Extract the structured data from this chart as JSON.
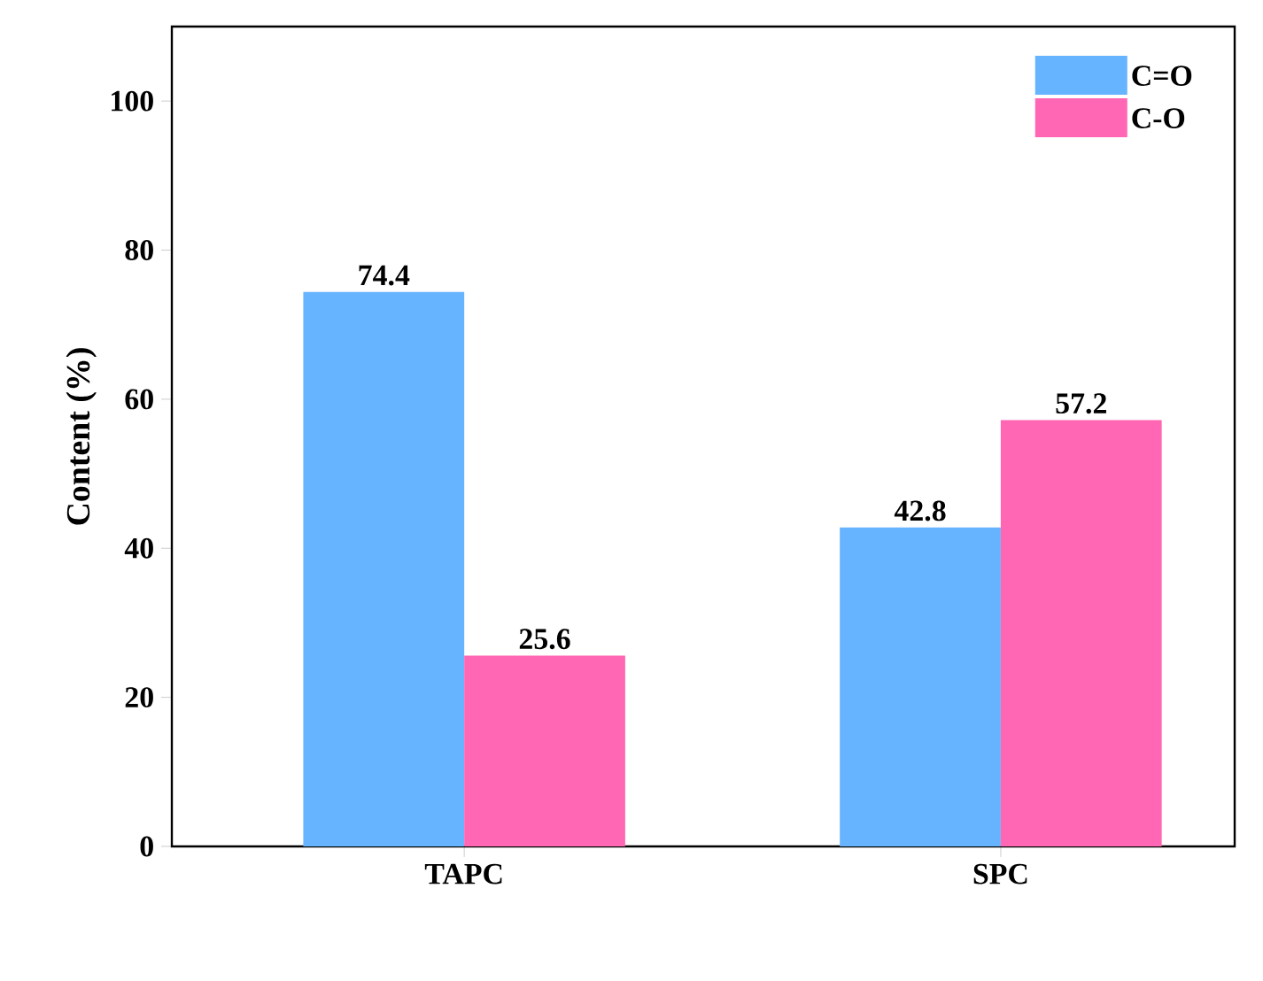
{
  "chart_data": {
    "type": "bar",
    "ylabel": "Content (%)",
    "categories": [
      "TAPC",
      "SPC"
    ],
    "series": [
      {
        "name": "C=O",
        "color": "#66b3ff",
        "values": [
          74.4,
          42.8
        ],
        "value_labels": [
          "74.4",
          "42.8"
        ]
      },
      {
        "name": "C-O",
        "color": "#ff66b3",
        "values": [
          25.6,
          57.2
        ],
        "value_labels": [
          "25.6",
          "57.2"
        ]
      }
    ],
    "ylim": [
      0,
      110
    ],
    "yticks": [
      0,
      20,
      40,
      60,
      80,
      100
    ],
    "legend": "top right",
    "grid": false
  }
}
